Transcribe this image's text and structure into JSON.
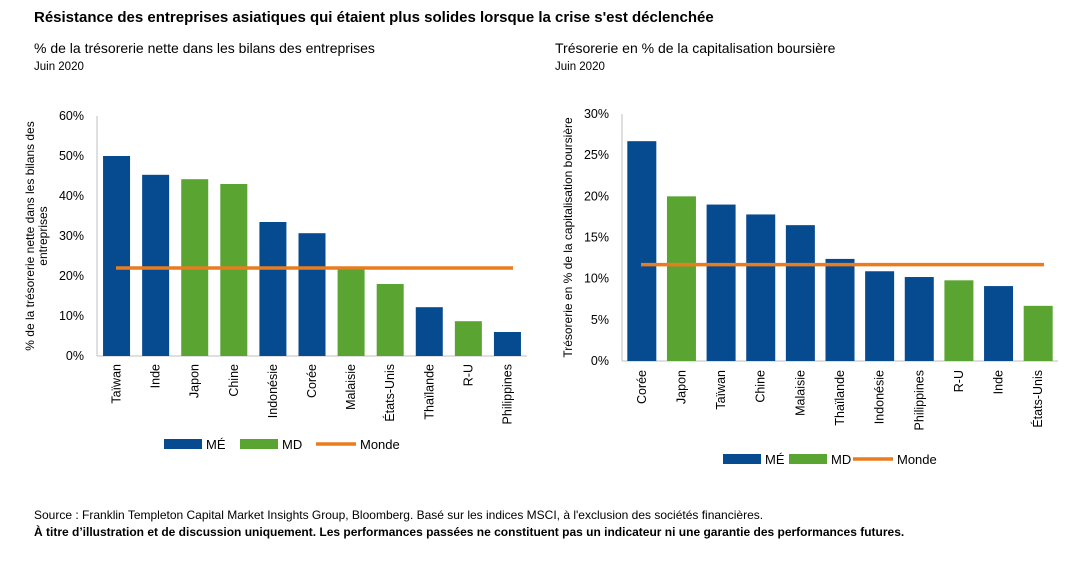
{
  "title": "Résistance des entreprises asiatiques qui étaient plus solides lorsque la crise s'est déclenchée",
  "colors": {
    "me": "#064a8f",
    "md": "#5aa532",
    "monde": "#e87c1e",
    "axis": "#bfbfbf"
  },
  "chart_data": [
    {
      "type": "bar",
      "title": "% de la trésorerie nette dans les bilans des entreprises",
      "subtitle": "Juin 2020",
      "ylabel": "% de la trésorerie nette dans les bilans des entreprises",
      "ylim": [
        0,
        60
      ],
      "yticks": [
        "0%",
        "10%",
        "20%",
        "30%",
        "40%",
        "50%",
        "60%"
      ],
      "categories": [
        "Taïwan",
        "Inde",
        "Japon",
        "Chine",
        "Indonésie",
        "Corée",
        "Malaisie",
        "États-Unis",
        "Thaïlande",
        "R-U",
        "Philippines"
      ],
      "values": [
        50,
        45.3,
        44.2,
        43,
        33.5,
        30.7,
        22,
        18,
        12.2,
        8.7,
        6
      ],
      "groups": [
        "ME",
        "ME",
        "MD",
        "MD",
        "ME",
        "ME",
        "MD",
        "MD",
        "ME",
        "MD",
        "ME"
      ],
      "world": 22,
      "legend": [
        "MÉ",
        "MD",
        "Monde"
      ]
    },
    {
      "type": "bar",
      "title": "Trésorerie en % de la capitalisation boursière",
      "subtitle": "Juin 2020",
      "ylabel": "Trésorerie en % de la capitalisation boursière",
      "ylim": [
        0,
        30
      ],
      "yticks": [
        "0%",
        "5%",
        "10%",
        "15%",
        "20%",
        "25%",
        "30%"
      ],
      "categories": [
        "Corée",
        "Japon",
        "Taïwan",
        "Chine",
        "Malaisie",
        "Thaïlande",
        "Indonésie",
        "Philippines",
        "R-U",
        "Inde",
        "États-Unis"
      ],
      "values": [
        26.7,
        20,
        19,
        17.8,
        16.5,
        12.4,
        10.9,
        10.2,
        9.8,
        9.1,
        6.7
      ],
      "groups": [
        "ME",
        "MD",
        "ME",
        "ME",
        "ME",
        "ME",
        "ME",
        "ME",
        "MD",
        "ME",
        "MD"
      ],
      "world": 11.7,
      "legend": [
        "MÉ",
        "MD",
        "Monde"
      ]
    }
  ],
  "source": "Source : Franklin Templeton Capital Market Insights Group, Bloomberg. Basé sur les indices MSCI, à l'exclusion des sociétés financières.",
  "disclaimer": "À titre d’illustration et de discussion uniquement. Les performances passées ne constituent pas un indicateur ni une garantie des performances futures."
}
